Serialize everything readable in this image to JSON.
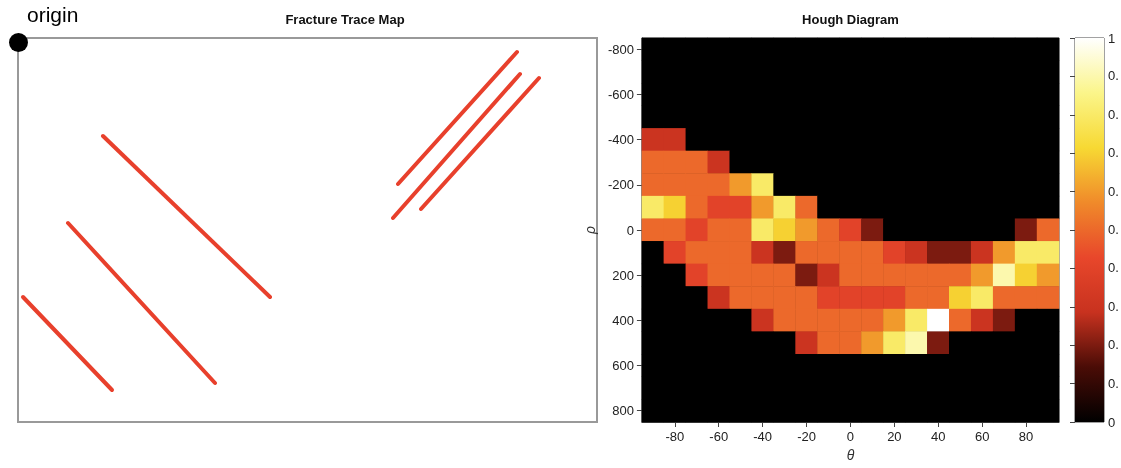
{
  "chart_data": [
    {
      "type": "other",
      "title": "Fracture Trace Map",
      "annotations": [
        "origin"
      ]
    },
    {
      "type": "heatmap",
      "title": "Hough Diagram",
      "xlabel": "θ",
      "ylabel": "ρ",
      "categories": [
        null,
        "-80",
        null,
        "-60",
        null,
        "-40",
        null,
        "-20",
        null,
        "0",
        null,
        "20",
        null,
        "40",
        null,
        "60",
        null,
        "80",
        null
      ],
      "y_categories": [
        "-800",
        null,
        "-600",
        null,
        "-400",
        null,
        "-200",
        null,
        "0",
        null,
        "200",
        null,
        "400",
        null,
        "600",
        null,
        "800"
      ],
      "cells": [
        [
          0,
          0,
          0,
          0,
          0,
          0,
          0,
          0,
          0,
          0,
          0,
          0,
          0,
          0,
          0,
          0,
          0,
          0,
          0
        ],
        [
          0,
          0,
          0,
          0,
          0,
          0,
          0,
          0,
          0,
          0,
          0,
          0,
          0,
          0,
          0,
          0,
          0,
          0,
          0
        ],
        [
          0,
          0,
          0,
          0,
          0,
          0,
          0,
          0,
          0,
          0,
          0,
          0,
          0,
          0,
          0,
          0,
          0,
          0,
          0
        ],
        [
          0,
          0,
          0,
          0,
          0,
          0,
          0,
          0,
          0,
          0,
          0,
          0,
          0,
          0,
          0,
          0,
          0,
          0,
          0
        ],
        [
          0.3,
          0.3,
          0,
          0,
          0,
          0,
          0,
          0,
          0,
          0,
          0,
          0,
          0,
          0,
          0,
          0,
          0,
          0,
          0
        ],
        [
          0.5,
          0.5,
          0.5,
          0.3,
          0,
          0,
          0,
          0,
          0,
          0,
          0,
          0,
          0,
          0,
          0,
          0,
          0,
          0,
          0
        ],
        [
          0.5,
          0.5,
          0.5,
          0.5,
          0.6,
          0.8,
          0,
          0,
          0,
          0,
          0,
          0,
          0,
          0,
          0,
          0,
          0,
          0,
          0
        ],
        [
          0.8,
          0.7,
          0.5,
          0.4,
          0.4,
          0.6,
          0.8,
          0.5,
          0,
          0,
          0,
          0,
          0,
          0,
          0,
          0,
          0,
          0,
          0
        ],
        [
          0.5,
          0.5,
          0.4,
          0.5,
          0.5,
          0.8,
          0.7,
          0.6,
          0.5,
          0.4,
          0.2,
          0,
          0,
          0,
          0,
          0,
          0,
          0.2,
          0.5
        ],
        [
          0,
          0.4,
          0.5,
          0.5,
          0.5,
          0.3,
          0.2,
          0.5,
          0.5,
          0.5,
          0.5,
          0.4,
          0.3,
          0.2,
          0.2,
          0.3,
          0.6,
          0.8,
          0.8
        ],
        [
          0,
          0,
          0.4,
          0.5,
          0.5,
          0.5,
          0.5,
          0.2,
          0.3,
          0.5,
          0.5,
          0.5,
          0.5,
          0.5,
          0.5,
          0.6,
          0.9,
          0.7,
          0.6
        ],
        [
          0,
          0,
          0,
          0.3,
          0.5,
          0.5,
          0.5,
          0.5,
          0.4,
          0.4,
          0.4,
          0.4,
          0.5,
          0.5,
          0.7,
          0.8,
          0.5,
          0.5,
          0.5
        ],
        [
          0,
          0,
          0,
          0,
          0,
          0.3,
          0.5,
          0.5,
          0.5,
          0.5,
          0.5,
          0.6,
          0.8,
          1,
          0.5,
          0.3,
          0.2,
          0,
          0
        ],
        [
          0,
          0,
          0,
          0,
          0,
          0,
          0,
          0.3,
          0.5,
          0.5,
          0.6,
          0.8,
          0.9,
          0.2,
          0,
          0,
          0,
          0,
          0
        ],
        [
          0,
          0,
          0,
          0,
          0,
          0,
          0,
          0,
          0,
          0,
          0,
          0,
          0,
          0,
          0,
          0,
          0,
          0,
          0
        ],
        [
          0,
          0,
          0,
          0,
          0,
          0,
          0,
          0,
          0,
          0,
          0,
          0,
          0,
          0,
          0,
          0,
          0,
          0,
          0
        ],
        [
          0,
          0,
          0,
          0,
          0,
          0,
          0,
          0,
          0,
          0,
          0,
          0,
          0,
          0,
          0,
          0,
          0,
          0,
          0
        ]
      ],
      "clim": [
        0,
        1
      ],
      "cticks": [
        0,
        {
          "value": 0.1,
          "label": null
        },
        {
          "value": 0.2,
          "label": null
        },
        {
          "value": 0.3,
          "label": null
        },
        {
          "value": 0.4,
          "label": null
        },
        {
          "value": 0.5,
          "label": null
        },
        {
          "value": 0.6,
          "label": null
        },
        {
          "value": 0.7,
          "label": null
        },
        {
          "value": 0.8,
          "label": null
        },
        {
          "value": 0.9,
          "label": null
        },
        1
      ],
      "annotations": [
        "0.",
        "0.",
        "0.",
        "0.",
        "0.",
        "0.",
        "0.",
        "0.",
        "0."
      ]
    }
  ]
}
